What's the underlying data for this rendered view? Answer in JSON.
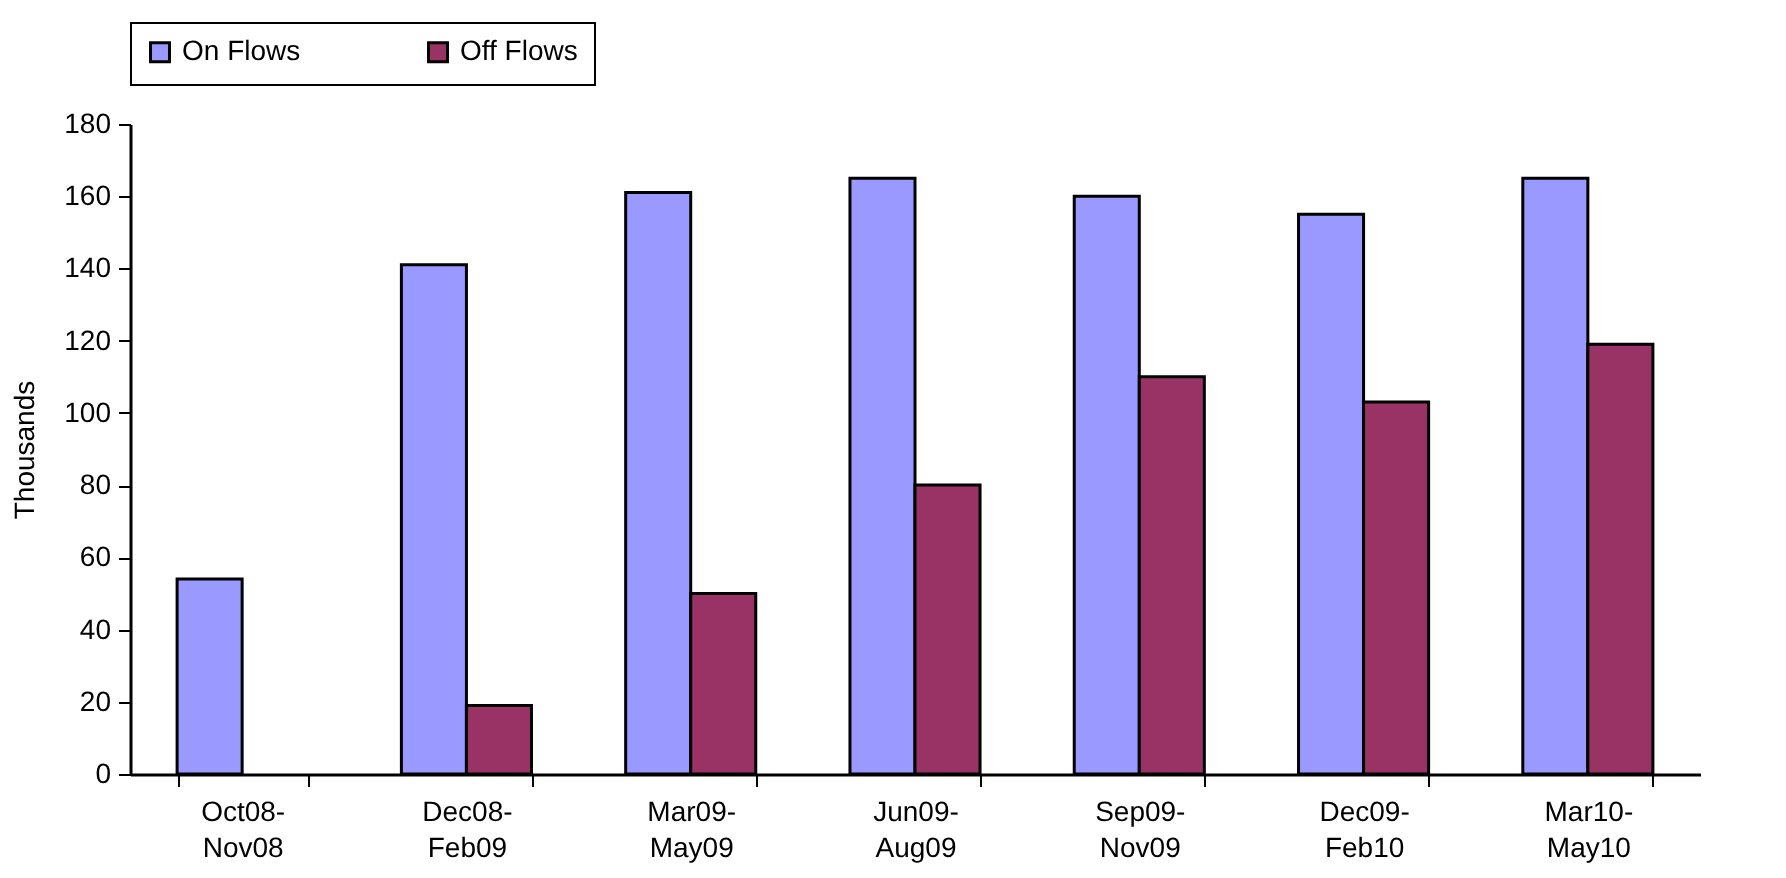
{
  "chart_data": {
    "type": "bar",
    "ylabel": "Thousands",
    "categories": [
      "Oct08-Nov08",
      "Dec08-Feb09",
      "Mar09-May09",
      "Jun09-Aug09",
      "Sep09-Nov09",
      "Dec09-Feb10",
      "Mar10-May10"
    ],
    "series": [
      {
        "name": "On Flows",
        "color": "#9999ff",
        "values": [
          54,
          141,
          161,
          165,
          160,
          155,
          165
        ]
      },
      {
        "name": "Off Flows",
        "color": "#993366",
        "values": [
          null,
          19,
          50,
          80,
          110,
          103,
          119
        ]
      }
    ],
    "ylim": [
      0,
      180
    ],
    "yticks": [
      0,
      20,
      40,
      60,
      80,
      100,
      120,
      140,
      160,
      180
    ],
    "grid": false,
    "legend": "top"
  }
}
